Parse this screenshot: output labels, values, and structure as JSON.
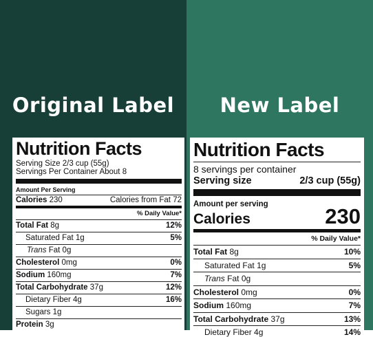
{
  "original": {
    "heading": "Original Label",
    "title": "Nutrition Facts",
    "serving_size": "Serving Size 2/3 cup (55g)",
    "servings_per_container": "Servings Per Container About 8",
    "amount_per_serving": "Amount Per Serving",
    "calories_label": "Calories",
    "calories_value": "230",
    "calories_from_fat": "Calories from Fat 72",
    "daily_value_header": "% Daily Value*",
    "rows": [
      {
        "label": "Total Fat",
        "amount": "8g",
        "dv": "12%"
      },
      {
        "label": "Saturated Fat",
        "amount": "1g",
        "dv": "5%"
      },
      {
        "label": "Trans",
        "amount": "Fat 0g",
        "dv": ""
      },
      {
        "label": "Cholesterol",
        "amount": "0mg",
        "dv": "0%"
      },
      {
        "label": "Sodium",
        "amount": "160mg",
        "dv": "7%"
      },
      {
        "label": "Total Carbohydrate",
        "amount": "37g",
        "dv": "12%"
      },
      {
        "label": "Dietary Fiber",
        "amount": "4g",
        "dv": "16%"
      },
      {
        "label": "Sugars",
        "amount": "1g",
        "dv": ""
      },
      {
        "label": "Protein",
        "amount": "3g",
        "dv": ""
      }
    ]
  },
  "new": {
    "heading": "New Label",
    "title": "Nutrition Facts",
    "servings_per_container": "8 servings per container",
    "serving_size_label": "Serving size",
    "serving_size_value": "2/3 cup (55g)",
    "amount_per_serving": "Amount per serving",
    "calories_label": "Calories",
    "calories_value": "230",
    "daily_value_header": "% Daily Value*",
    "rows": [
      {
        "label": "Total Fat",
        "amount": "8g",
        "dv": "10%"
      },
      {
        "label": "Saturated Fat",
        "amount": "1g",
        "dv": "5%"
      },
      {
        "label": "Trans",
        "amount": "Fat 0g",
        "dv": ""
      },
      {
        "label": "Cholesterol",
        "amount": "0mg",
        "dv": "0%"
      },
      {
        "label": "Sodium",
        "amount": "160mg",
        "dv": "7%"
      },
      {
        "label": "Total Carbohydrate",
        "amount": "37g",
        "dv": "13%"
      },
      {
        "label": "Dietary Fiber",
        "amount": "4g",
        "dv": "14%"
      }
    ]
  }
}
